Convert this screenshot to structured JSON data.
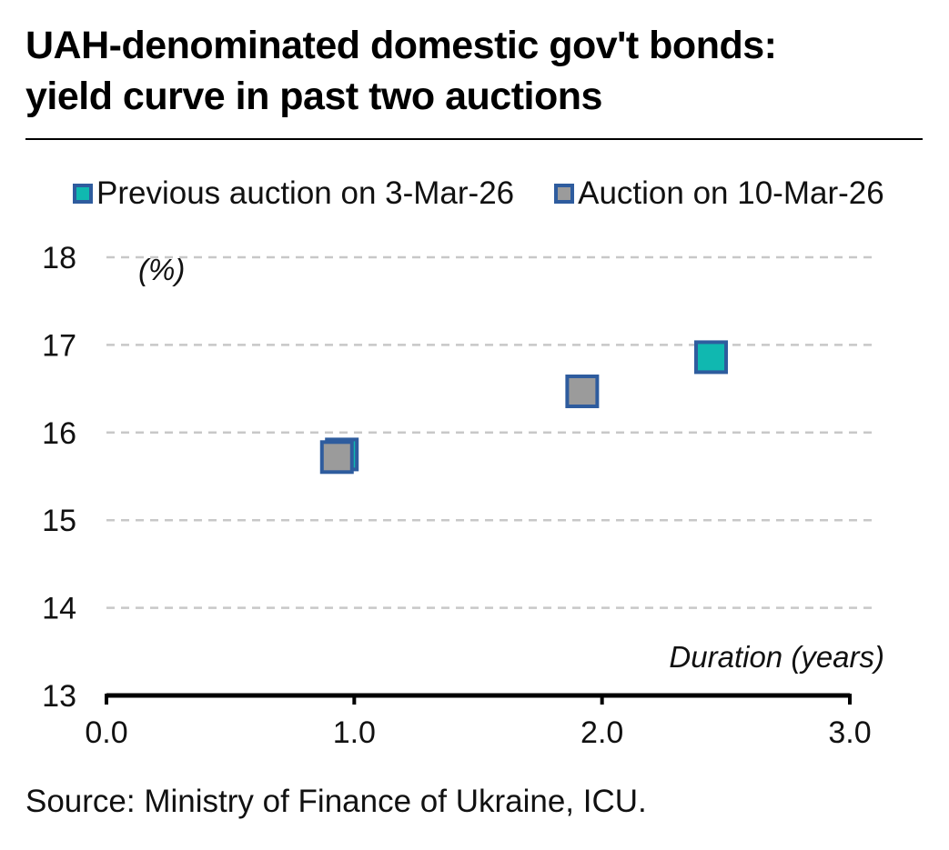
{
  "title_line1": "UAH-denominated domestic gov't bonds:",
  "title_line2": "yield curve in past two auctions",
  "source": "Source: Ministry of Finance of Ukraine, ICU.",
  "colors": {
    "previous": "#10b8b0",
    "current": "#9b9b9b",
    "border": "#2e5c9e",
    "grid": "#c8c8c8",
    "axis": "#000000"
  },
  "chart_data": {
    "type": "scatter",
    "title": "UAH-denominated domestic gov't bonds: yield curve in past two auctions",
    "xlabel": "Duration (years)",
    "ylabel": "(%)",
    "xlim": [
      0,
      3
    ],
    "ylim": [
      13,
      18
    ],
    "xticks": [
      "0.0",
      "1.0",
      "2.0",
      "3.0"
    ],
    "yticks": [
      "13",
      "14",
      "15",
      "16",
      "17",
      "18"
    ],
    "grid": "horizontal dashed",
    "legend": "top",
    "series": [
      {
        "name": "Previous auction on 3-Mar-26",
        "color": "#10b8b0",
        "points": [
          {
            "x": 0.95,
            "y": 15.75
          },
          {
            "x": 2.44,
            "y": 16.86
          }
        ]
      },
      {
        "name": "Auction on 10-Mar-26",
        "color": "#9b9b9b",
        "points": [
          {
            "x": 0.93,
            "y": 15.72
          },
          {
            "x": 1.92,
            "y": 16.47
          }
        ]
      }
    ]
  }
}
